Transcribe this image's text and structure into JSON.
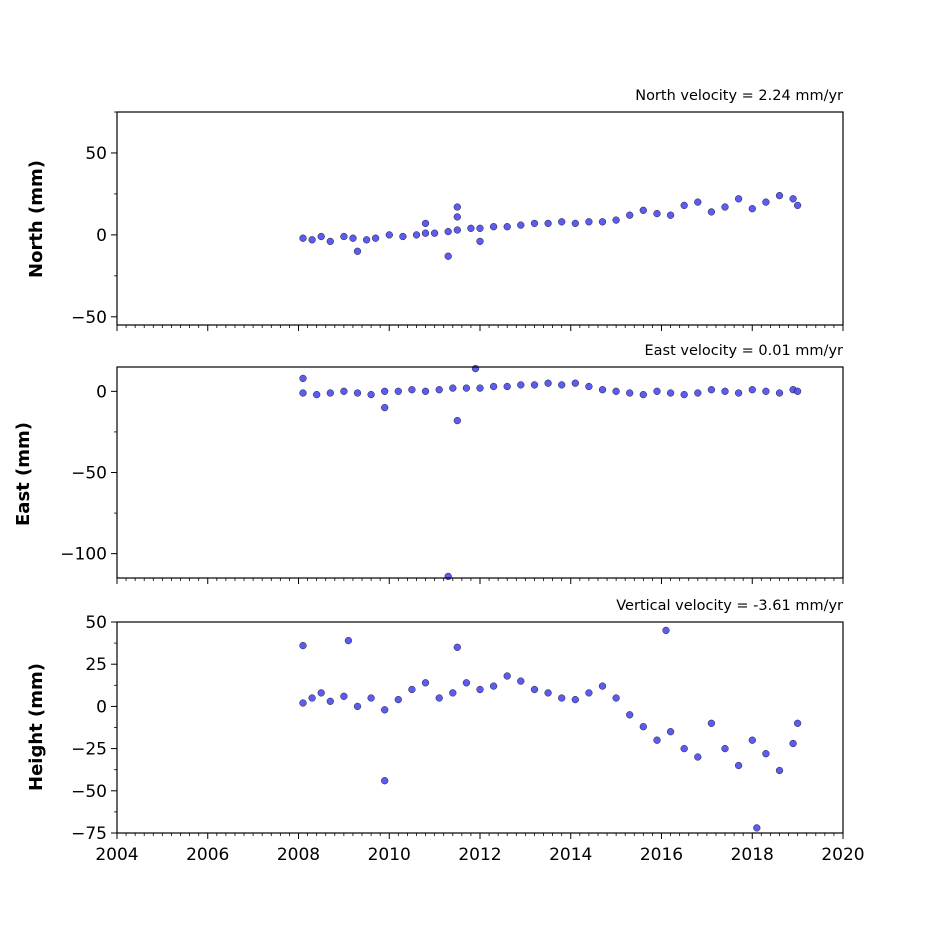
{
  "chart_data": [
    {
      "type": "scatter",
      "title": "North velocity = 2.24 mm/yr",
      "xlabel": "",
      "ylabel": "North (mm)",
      "xlim": [
        2004,
        2020
      ],
      "ylim": [
        -55,
        75
      ],
      "yticks": [
        50,
        0,
        -50
      ],
      "marker_color": "#4a4af0",
      "series": [
        {
          "values": [
            {
              "x": 2008.1,
              "y": -2
            },
            {
              "x": 2008.3,
              "y": -3
            },
            {
              "x": 2008.5,
              "y": -1
            },
            {
              "x": 2008.7,
              "y": -4
            },
            {
              "x": 2009.0,
              "y": -1
            },
            {
              "x": 2009.2,
              "y": -2
            },
            {
              "x": 2009.5,
              "y": -3
            },
            {
              "x": 2009.7,
              "y": -2
            },
            {
              "x": 2010.0,
              "y": 0
            },
            {
              "x": 2010.3,
              "y": -1
            },
            {
              "x": 2010.6,
              "y": 0
            },
            {
              "x": 2010.8,
              "y": 1
            },
            {
              "x": 2011.0,
              "y": 1
            },
            {
              "x": 2011.3,
              "y": 2
            },
            {
              "x": 2011.5,
              "y": 3
            },
            {
              "x": 2011.8,
              "y": 4
            },
            {
              "x": 2012.0,
              "y": 4
            },
            {
              "x": 2012.3,
              "y": 5
            },
            {
              "x": 2012.6,
              "y": 5
            },
            {
              "x": 2012.9,
              "y": 6
            },
            {
              "x": 2013.2,
              "y": 7
            },
            {
              "x": 2013.5,
              "y": 7
            },
            {
              "x": 2013.8,
              "y": 8
            },
            {
              "x": 2014.1,
              "y": 7
            },
            {
              "x": 2014.4,
              "y": 8
            },
            {
              "x": 2014.7,
              "y": 8
            },
            {
              "x": 2015.0,
              "y": 9
            },
            {
              "x": 2015.3,
              "y": 12
            },
            {
              "x": 2015.6,
              "y": 15
            },
            {
              "x": 2015.9,
              "y": 13
            },
            {
              "x": 2016.2,
              "y": 12
            },
            {
              "x": 2016.5,
              "y": 18
            },
            {
              "x": 2016.8,
              "y": 20
            },
            {
              "x": 2017.1,
              "y": 14
            },
            {
              "x": 2017.4,
              "y": 17
            },
            {
              "x": 2017.7,
              "y": 22
            },
            {
              "x": 2018.0,
              "y": 16
            },
            {
              "x": 2018.3,
              "y": 20
            },
            {
              "x": 2018.6,
              "y": 24
            },
            {
              "x": 2018.9,
              "y": 22
            },
            {
              "x": 2019.0,
              "y": 18
            },
            {
              "x": 2009.3,
              "y": -10
            },
            {
              "x": 2010.8,
              "y": 7
            },
            {
              "x": 2011.3,
              "y": -13
            },
            {
              "x": 2011.5,
              "y": 17
            },
            {
              "x": 2011.5,
              "y": 11
            },
            {
              "x": 2012.0,
              "y": -4
            }
          ]
        }
      ]
    },
    {
      "type": "scatter",
      "title": "East velocity = 0.01 mm/yr",
      "xlabel": "",
      "ylabel": "East (mm)",
      "xlim": [
        2004,
        2020
      ],
      "ylim": [
        -115,
        15
      ],
      "yticks": [
        0,
        -50,
        -100
      ],
      "marker_color": "#4a4af0",
      "series": [
        {
          "values": [
            {
              "x": 2008.1,
              "y": -1
            },
            {
              "x": 2008.4,
              "y": -2
            },
            {
              "x": 2008.7,
              "y": -1
            },
            {
              "x": 2009.0,
              "y": 0
            },
            {
              "x": 2009.3,
              "y": -1
            },
            {
              "x": 2009.6,
              "y": -2
            },
            {
              "x": 2009.9,
              "y": 0
            },
            {
              "x": 2010.2,
              "y": 0
            },
            {
              "x": 2010.5,
              "y": 1
            },
            {
              "x": 2010.8,
              "y": 0
            },
            {
              "x": 2011.1,
              "y": 1
            },
            {
              "x": 2011.4,
              "y": 2
            },
            {
              "x": 2011.7,
              "y": 2
            },
            {
              "x": 2012.0,
              "y": 2
            },
            {
              "x": 2012.3,
              "y": 3
            },
            {
              "x": 2012.6,
              "y": 3
            },
            {
              "x": 2012.9,
              "y": 4
            },
            {
              "x": 2013.2,
              "y": 4
            },
            {
              "x": 2013.5,
              "y": 5
            },
            {
              "x": 2013.8,
              "y": 4
            },
            {
              "x": 2014.1,
              "y": 5
            },
            {
              "x": 2014.4,
              "y": 3
            },
            {
              "x": 2014.7,
              "y": 1
            },
            {
              "x": 2015.0,
              "y": 0
            },
            {
              "x": 2015.3,
              "y": -1
            },
            {
              "x": 2015.6,
              "y": -2
            },
            {
              "x": 2015.9,
              "y": 0
            },
            {
              "x": 2016.2,
              "y": -1
            },
            {
              "x": 2016.5,
              "y": -2
            },
            {
              "x": 2016.8,
              "y": -1
            },
            {
              "x": 2017.1,
              "y": 1
            },
            {
              "x": 2017.4,
              "y": 0
            },
            {
              "x": 2017.7,
              "y": -1
            },
            {
              "x": 2018.0,
              "y": 1
            },
            {
              "x": 2018.3,
              "y": 0
            },
            {
              "x": 2018.6,
              "y": -1
            },
            {
              "x": 2018.9,
              "y": 1
            },
            {
              "x": 2019.0,
              "y": 0
            },
            {
              "x": 2008.1,
              "y": 8
            },
            {
              "x": 2009.9,
              "y": -10
            },
            {
              "x": 2011.3,
              "y": -114
            },
            {
              "x": 2011.5,
              "y": -18
            },
            {
              "x": 2011.9,
              "y": 14
            }
          ]
        }
      ]
    },
    {
      "type": "scatter",
      "title": "Vertical velocity = -3.61 mm/yr",
      "xlabel": "",
      "ylabel": "Height (mm)",
      "xlim": [
        2004,
        2020
      ],
      "ylim": [
        -75,
        50
      ],
      "yticks": [
        50,
        25,
        0,
        -25,
        -50,
        -75
      ],
      "xticks": [
        2004,
        2006,
        2008,
        2010,
        2012,
        2014,
        2016,
        2018,
        2020
      ],
      "marker_color": "#4a4af0",
      "series": [
        {
          "values": [
            {
              "x": 2008.1,
              "y": 2
            },
            {
              "x": 2008.3,
              "y": 5
            },
            {
              "x": 2008.5,
              "y": 8
            },
            {
              "x": 2008.7,
              "y": 3
            },
            {
              "x": 2009.0,
              "y": 6
            },
            {
              "x": 2009.3,
              "y": 0
            },
            {
              "x": 2009.6,
              "y": 5
            },
            {
              "x": 2009.9,
              "y": -2
            },
            {
              "x": 2010.2,
              "y": 4
            },
            {
              "x": 2010.5,
              "y": 10
            },
            {
              "x": 2010.8,
              "y": 14
            },
            {
              "x": 2011.1,
              "y": 5
            },
            {
              "x": 2011.4,
              "y": 8
            },
            {
              "x": 2011.7,
              "y": 14
            },
            {
              "x": 2012.0,
              "y": 10
            },
            {
              "x": 2012.3,
              "y": 12
            },
            {
              "x": 2012.6,
              "y": 18
            },
            {
              "x": 2012.9,
              "y": 15
            },
            {
              "x": 2013.2,
              "y": 10
            },
            {
              "x": 2013.5,
              "y": 8
            },
            {
              "x": 2013.8,
              "y": 5
            },
            {
              "x": 2014.1,
              "y": 4
            },
            {
              "x": 2014.4,
              "y": 8
            },
            {
              "x": 2014.7,
              "y": 12
            },
            {
              "x": 2015.0,
              "y": 5
            },
            {
              "x": 2015.3,
              "y": -5
            },
            {
              "x": 2015.6,
              "y": -12
            },
            {
              "x": 2015.9,
              "y": -20
            },
            {
              "x": 2016.2,
              "y": -15
            },
            {
              "x": 2016.5,
              "y": -25
            },
            {
              "x": 2016.8,
              "y": -30
            },
            {
              "x": 2017.1,
              "y": -10
            },
            {
              "x": 2017.4,
              "y": -25
            },
            {
              "x": 2017.7,
              "y": -35
            },
            {
              "x": 2018.0,
              "y": -20
            },
            {
              "x": 2018.3,
              "y": -28
            },
            {
              "x": 2018.6,
              "y": -38
            },
            {
              "x": 2018.9,
              "y": -22
            },
            {
              "x": 2019.0,
              "y": -10
            },
            {
              "x": 2008.1,
              "y": 36
            },
            {
              "x": 2009.1,
              "y": 39
            },
            {
              "x": 2009.9,
              "y": -44
            },
            {
              "x": 2011.5,
              "y": 35
            },
            {
              "x": 2016.1,
              "y": 45
            },
            {
              "x": 2018.1,
              "y": -72
            }
          ]
        }
      ]
    }
  ]
}
